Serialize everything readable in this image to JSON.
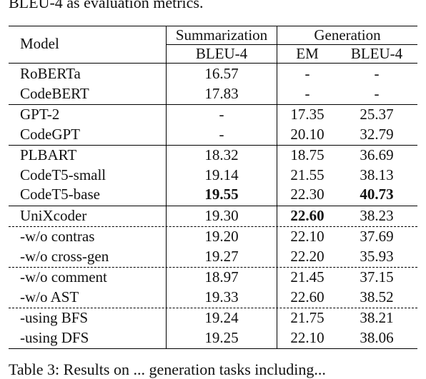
{
  "top_caption": "BLEU-4 as evaluation metrics.",
  "bottom_caption": "Table 3: Results on ... generation tasks including...",
  "table": {
    "header_model": "Model",
    "group_summarization": "Summarization",
    "group_generation": "Generation",
    "sub_sum_bleu": "BLEU-4",
    "sub_gen_em": "EM",
    "sub_gen_bleu": "BLEU-4",
    "rows": [
      {
        "model": "RoBERTa",
        "sum_bleu": "16.57",
        "em": "-",
        "gen_bleu": "-"
      },
      {
        "model": "CodeBERT",
        "sum_bleu": "17.83",
        "em": "-",
        "gen_bleu": "-"
      },
      {
        "model": "GPT-2",
        "sum_bleu": "-",
        "em": "17.35",
        "gen_bleu": "25.37"
      },
      {
        "model": "CodeGPT",
        "sum_bleu": "-",
        "em": "20.10",
        "gen_bleu": "32.79"
      },
      {
        "model": "PLBART",
        "sum_bleu": "18.32",
        "em": "18.75",
        "gen_bleu": "36.69"
      },
      {
        "model": "CodeT5-small",
        "sum_bleu": "19.14",
        "em": "21.55",
        "gen_bleu": "38.13"
      },
      {
        "model": "CodeT5-base",
        "sum_bleu": "19.55",
        "em": "22.30",
        "gen_bleu": "40.73"
      },
      {
        "model": "UniXcoder",
        "sum_bleu": "19.30",
        "em": "22.60",
        "gen_bleu": "38.23"
      },
      {
        "model": "-w/o contras",
        "sum_bleu": "19.20",
        "em": "22.10",
        "gen_bleu": "37.69"
      },
      {
        "model": "-w/o cross-gen",
        "sum_bleu": "19.27",
        "em": "22.20",
        "gen_bleu": "35.93"
      },
      {
        "model": "-w/o comment",
        "sum_bleu": "18.97",
        "em": "21.45",
        "gen_bleu": "37.15"
      },
      {
        "model": "-w/o AST",
        "sum_bleu": "19.33",
        "em": "22.60",
        "gen_bleu": "38.52"
      },
      {
        "model": "-using BFS",
        "sum_bleu": "19.24",
        "em": "21.75",
        "gen_bleu": "38.21"
      },
      {
        "model": "-using DFS",
        "sum_bleu": "19.25",
        "em": "22.10",
        "gen_bleu": "38.06"
      }
    ]
  }
}
